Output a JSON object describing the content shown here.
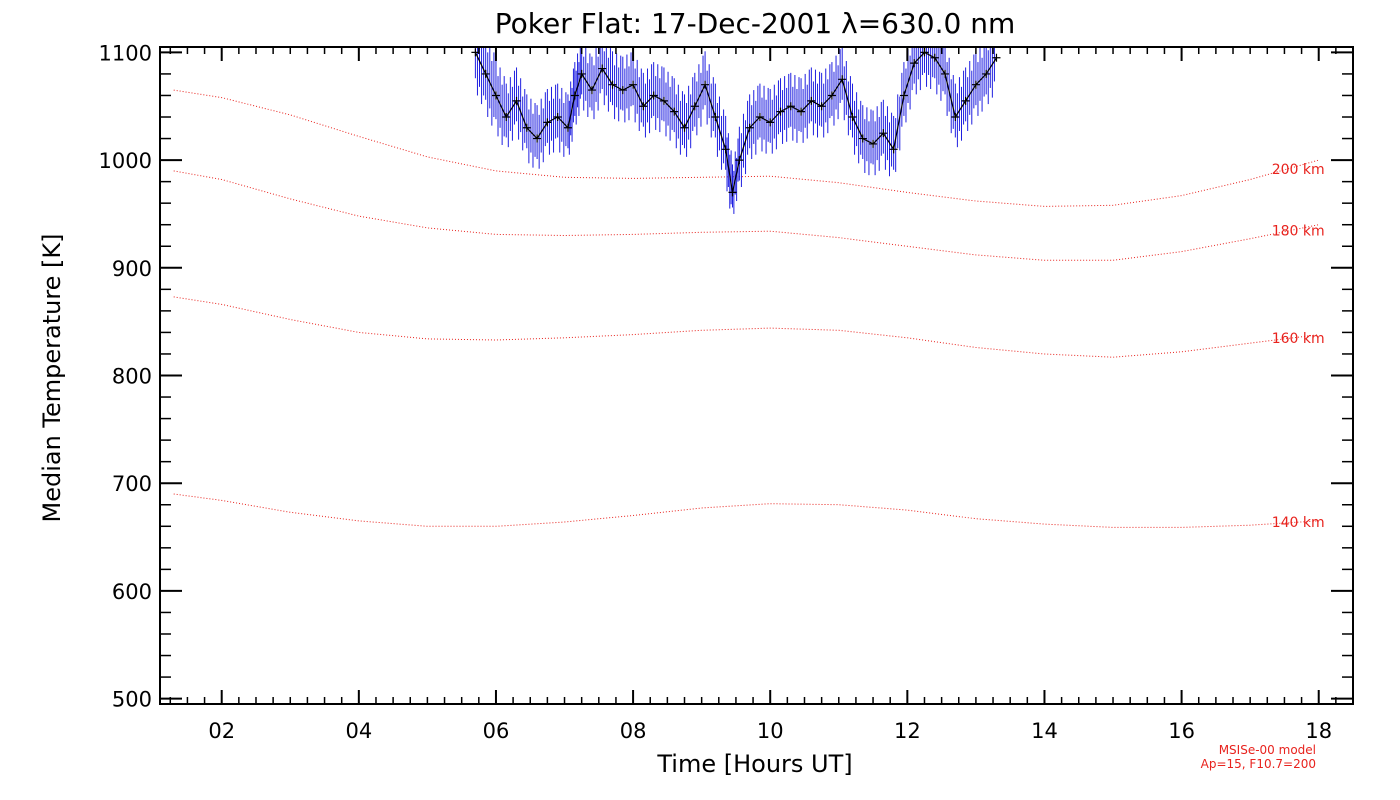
{
  "chart_data": {
    "type": "line",
    "title": "Poker Flat: 17-Dec-2001 λ=630.0 nm",
    "xlabel": "Time [Hours UT]",
    "ylabel": "Median Temperature [K]",
    "xlim": [
      1.1,
      18.5
    ],
    "ylim": [
      495,
      1105
    ],
    "x_ticks": [
      2,
      4,
      6,
      8,
      10,
      12,
      14,
      16,
      18
    ],
    "x_tick_labels": [
      "02",
      "04",
      "06",
      "08",
      "10",
      "12",
      "14",
      "16",
      "18"
    ],
    "y_ticks": [
      500,
      600,
      700,
      800,
      900,
      1000,
      1100
    ],
    "y_tick_labels": [
      "500",
      "600",
      "700",
      "800",
      "900",
      "1000",
      "1100"
    ],
    "grid": false,
    "colors": {
      "measured_error": "#1f1fe0",
      "measured_median": "#000000",
      "model": "#e8231e"
    },
    "measured": {
      "x": [
        5.7,
        5.85,
        6.0,
        6.15,
        6.3,
        6.45,
        6.6,
        6.75,
        6.9,
        7.05,
        7.15,
        7.25,
        7.4,
        7.55,
        7.7,
        7.85,
        8.0,
        8.15,
        8.3,
        8.45,
        8.6,
        8.75,
        8.9,
        9.05,
        9.2,
        9.35,
        9.45,
        9.55,
        9.7,
        9.85,
        10.0,
        10.15,
        10.3,
        10.45,
        10.6,
        10.75,
        10.9,
        11.05,
        11.2,
        11.35,
        11.5,
        11.65,
        11.8,
        11.95,
        12.1,
        12.25,
        12.4,
        12.55,
        12.7,
        12.85,
        13.0,
        13.15,
        13.3
      ],
      "y": [
        1100,
        1080,
        1060,
        1040,
        1055,
        1030,
        1020,
        1035,
        1040,
        1030,
        1060,
        1080,
        1065,
        1085,
        1070,
        1065,
        1070,
        1050,
        1060,
        1055,
        1045,
        1030,
        1050,
        1070,
        1040,
        1010,
        970,
        1000,
        1030,
        1040,
        1035,
        1045,
        1050,
        1045,
        1055,
        1050,
        1060,
        1075,
        1040,
        1020,
        1015,
        1025,
        1010,
        1060,
        1090,
        1100,
        1095,
        1080,
        1040,
        1055,
        1070,
        1080,
        1095
      ],
      "error": [
        30,
        30,
        28,
        25,
        25,
        25,
        25,
        25,
        25,
        25,
        25,
        25,
        25,
        25,
        25,
        25,
        25,
        25,
        25,
        25,
        25,
        25,
        25,
        25,
        25,
        25,
        20,
        25,
        25,
        25,
        25,
        25,
        25,
        25,
        25,
        25,
        25,
        25,
        25,
        25,
        25,
        25,
        25,
        25,
        25,
        25,
        25,
        25,
        25,
        25,
        25,
        25,
        25
      ]
    },
    "model_curves": [
      {
        "label": "200 km",
        "x": [
          1.3,
          2,
          3,
          4,
          5,
          6,
          7,
          8,
          9,
          10,
          11,
          12,
          13,
          14,
          15,
          16,
          17,
          18
        ],
        "y": [
          1065,
          1058,
          1042,
          1022,
          1003,
          990,
          984,
          983,
          984,
          985,
          979,
          970,
          962,
          957,
          958,
          967,
          982,
          1000
        ]
      },
      {
        "label": "180 km",
        "x": [
          1.3,
          2,
          3,
          4,
          5,
          6,
          7,
          8,
          9,
          10,
          11,
          12,
          13,
          14,
          15,
          16,
          17,
          18
        ],
        "y": [
          990,
          982,
          964,
          948,
          937,
          931,
          930,
          931,
          933,
          934,
          928,
          920,
          912,
          907,
          907,
          915,
          927,
          940
        ]
      },
      {
        "label": "160 km",
        "x": [
          1.3,
          2,
          3,
          4,
          5,
          6,
          7,
          8,
          9,
          10,
          11,
          12,
          13,
          14,
          15,
          16,
          17,
          18
        ],
        "y": [
          873,
          866,
          852,
          840,
          834,
          833,
          835,
          838,
          842,
          844,
          842,
          835,
          826,
          820,
          817,
          822,
          830,
          838
        ]
      },
      {
        "label": "140 km",
        "x": [
          1.3,
          2,
          3,
          4,
          5,
          6,
          7,
          8,
          9,
          10,
          11,
          12,
          13,
          14,
          15,
          16,
          17,
          18
        ],
        "y": [
          690,
          684,
          673,
          665,
          660,
          660,
          664,
          670,
          677,
          681,
          680,
          675,
          667,
          662,
          659,
          659,
          661,
          665
        ]
      }
    ],
    "model_note": [
      "MSISe-00 model",
      "Ap=15, F10.7=200"
    ]
  }
}
